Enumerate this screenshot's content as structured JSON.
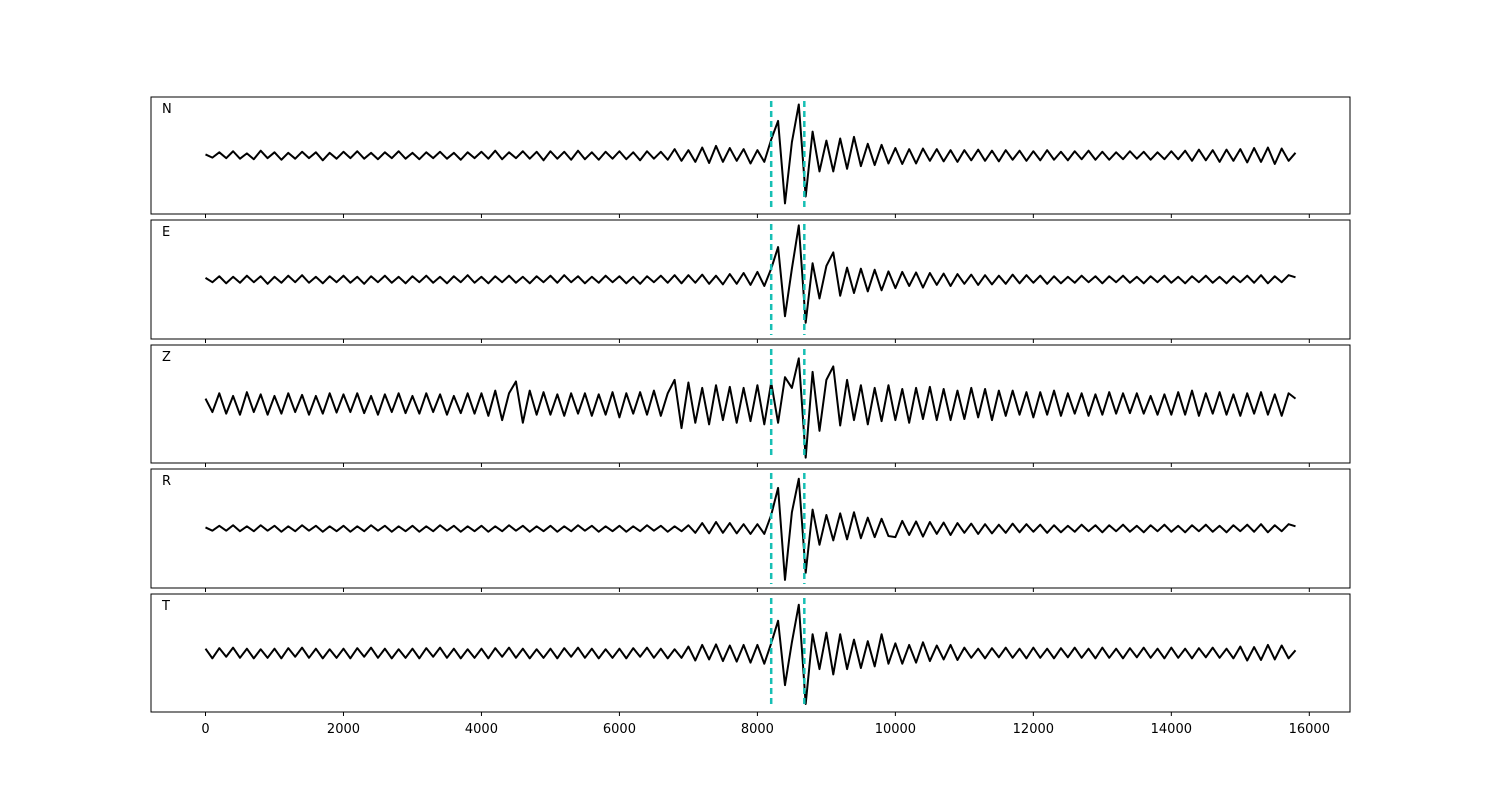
{
  "chart_data": {
    "type": "line",
    "x": [
      0,
      100,
      200,
      300,
      400,
      500,
      600,
      700,
      800,
      900,
      1000,
      1100,
      1200,
      1300,
      1400,
      1500,
      1600,
      1700,
      1800,
      1900,
      2000,
      2100,
      2200,
      2300,
      2400,
      2500,
      2600,
      2700,
      2800,
      2900,
      3000,
      3100,
      3200,
      3300,
      3400,
      3500,
      3600,
      3700,
      3800,
      3900,
      4000,
      4100,
      4200,
      4300,
      4400,
      4500,
      4600,
      4700,
      4800,
      4900,
      5000,
      5100,
      5200,
      5300,
      5400,
      5500,
      5600,
      5700,
      5800,
      5900,
      6000,
      6100,
      6200,
      6300,
      6400,
      6500,
      6600,
      6700,
      6800,
      6900,
      7000,
      7100,
      7200,
      7300,
      7400,
      7500,
      7600,
      7700,
      7800,
      7900,
      8000,
      8100,
      8200,
      8300,
      8400,
      8500,
      8600,
      8700,
      8800,
      8900,
      9000,
      9100,
      9200,
      9300,
      9400,
      9500,
      9600,
      9700,
      9800,
      9900,
      10000,
      10100,
      10200,
      10300,
      10400,
      10500,
      10600,
      10700,
      10800,
      10900,
      11000,
      11100,
      11200,
      11300,
      11400,
      11500,
      11600,
      11700,
      11800,
      11900,
      12000,
      12100,
      12200,
      12300,
      12400,
      12500,
      12600,
      12700,
      12800,
      12900,
      13000,
      13100,
      13200,
      13300,
      13400,
      13500,
      13600,
      13700,
      13800,
      13900,
      14000,
      14100,
      14200,
      14300,
      14400,
      14500,
      14600,
      14700,
      14800,
      14900,
      15000,
      15100,
      15200,
      15300,
      15400,
      15500,
      15600,
      15700,
      15800
    ],
    "xlim": [
      -790,
      16590
    ],
    "xticks": [
      0,
      2000,
      4000,
      6000,
      8000,
      10000,
      12000,
      14000,
      16000
    ],
    "ylim": [
      -1.1,
      1.1
    ],
    "vlines": [
      8200,
      8680
    ],
    "vline_color": "#17bfb4",
    "series": [
      {
        "name": "N",
        "color": "#000000",
        "values": [
          0.02,
          -0.04,
          0.06,
          -0.05,
          0.08,
          -0.06,
          0.04,
          -0.07,
          0.09,
          -0.05,
          0.06,
          -0.08,
          0.05,
          -0.06,
          0.07,
          -0.05,
          0.06,
          -0.09,
          0.05,
          -0.06,
          0.07,
          -0.05,
          0.08,
          -0.06,
          0.05,
          -0.07,
          0.06,
          -0.05,
          0.08,
          -0.06,
          0.05,
          -0.07,
          0.06,
          -0.05,
          0.07,
          -0.06,
          0.05,
          -0.08,
          0.06,
          -0.05,
          0.07,
          -0.06,
          0.09,
          -0.07,
          0.06,
          -0.05,
          0.08,
          -0.06,
          0.07,
          -0.09,
          0.08,
          -0.06,
          0.07,
          -0.08,
          0.09,
          -0.07,
          0.06,
          -0.08,
          0.07,
          -0.06,
          0.08,
          -0.07,
          0.06,
          -0.09,
          0.08,
          -0.06,
          0.07,
          -0.08,
          0.12,
          -0.1,
          0.1,
          -0.12,
          0.15,
          -0.14,
          0.18,
          -0.12,
          0.14,
          -0.1,
          0.12,
          -0.15,
          0.1,
          -0.12,
          0.3,
          0.65,
          -0.9,
          0.25,
          0.96,
          -0.77,
          0.45,
          -0.3,
          0.28,
          -0.3,
          0.32,
          -0.25,
          0.35,
          -0.2,
          0.22,
          -0.18,
          0.2,
          -0.15,
          0.14,
          -0.16,
          0.12,
          -0.15,
          0.13,
          -0.1,
          0.12,
          -0.11,
          0.1,
          -0.12,
          0.1,
          -0.09,
          0.11,
          -0.1,
          0.09,
          -0.11,
          0.1,
          -0.08,
          0.09,
          -0.1,
          0.08,
          -0.09,
          0.1,
          -0.08,
          0.07,
          -0.09,
          0.08,
          -0.07,
          0.09,
          -0.08,
          0.07,
          -0.08,
          0.06,
          -0.07,
          0.08,
          -0.06,
          0.07,
          -0.08,
          0.06,
          -0.07,
          0.08,
          -0.07,
          0.09,
          -0.1,
          0.11,
          -0.09,
          0.1,
          -0.12,
          0.11,
          -0.1,
          0.12,
          -0.13,
          0.14,
          -0.12,
          0.15,
          -0.16,
          0.13,
          -0.1,
          0.05
        ]
      },
      {
        "name": "E",
        "color": "#000000",
        "values": [
          0.03,
          -0.05,
          0.06,
          -0.07,
          0.05,
          -0.06,
          0.07,
          -0.05,
          0.06,
          -0.08,
          0.05,
          -0.06,
          0.07,
          -0.05,
          0.08,
          -0.06,
          0.05,
          -0.07,
          0.06,
          -0.05,
          0.07,
          -0.06,
          0.05,
          -0.08,
          0.06,
          -0.05,
          0.07,
          -0.06,
          0.05,
          -0.07,
          0.06,
          -0.05,
          0.07,
          -0.06,
          0.05,
          -0.07,
          0.06,
          -0.05,
          0.08,
          -0.06,
          0.05,
          -0.07,
          0.06,
          -0.05,
          0.07,
          -0.06,
          0.05,
          -0.07,
          0.06,
          -0.05,
          0.07,
          -0.06,
          0.08,
          -0.05,
          0.06,
          -0.07,
          0.05,
          -0.06,
          0.07,
          -0.05,
          0.06,
          -0.07,
          0.05,
          -0.08,
          0.06,
          -0.05,
          0.07,
          -0.06,
          0.08,
          -0.07,
          0.08,
          -0.06,
          0.09,
          -0.08,
          0.07,
          -0.09,
          0.1,
          -0.08,
          0.12,
          -0.1,
          0.14,
          -0.12,
          0.2,
          0.6,
          -0.68,
          0.2,
          1.0,
          -0.8,
          0.3,
          -0.35,
          0.25,
          0.5,
          -0.3,
          0.22,
          -0.25,
          0.2,
          -0.22,
          0.18,
          -0.2,
          0.15,
          -0.16,
          0.14,
          -0.12,
          0.13,
          -0.15,
          0.12,
          -0.1,
          0.11,
          -0.12,
          0.1,
          -0.08,
          0.09,
          -0.1,
          0.08,
          -0.09,
          0.07,
          -0.08,
          0.09,
          -0.07,
          0.08,
          -0.06,
          0.07,
          -0.08,
          0.06,
          -0.07,
          0.05,
          -0.06,
          0.07,
          -0.05,
          0.06,
          -0.07,
          0.06,
          -0.05,
          0.07,
          -0.06,
          0.05,
          -0.07,
          0.06,
          -0.05,
          0.07,
          -0.06,
          0.05,
          -0.07,
          0.06,
          -0.05,
          0.07,
          -0.06,
          0.05,
          -0.07,
          0.06,
          -0.05,
          0.07,
          -0.06,
          0.08,
          -0.07,
          0.06,
          -0.05,
          0.08,
          0.04
        ]
      },
      {
        "name": "Z",
        "color": "#000000",
        "values": [
          0.1,
          -0.15,
          0.2,
          -0.18,
          0.15,
          -0.2,
          0.22,
          -0.15,
          0.18,
          -0.2,
          0.15,
          -0.18,
          0.2,
          -0.15,
          0.17,
          -0.2,
          0.15,
          -0.18,
          0.2,
          -0.16,
          0.18,
          -0.15,
          0.2,
          -0.17,
          0.15,
          -0.2,
          0.18,
          -0.15,
          0.2,
          -0.17,
          0.15,
          -0.18,
          0.2,
          -0.15,
          0.18,
          -0.2,
          0.15,
          -0.17,
          0.2,
          -0.18,
          0.2,
          -0.22,
          0.25,
          -0.3,
          0.2,
          0.42,
          -0.35,
          0.25,
          -0.2,
          0.22,
          -0.2,
          0.18,
          -0.22,
          0.2,
          -0.18,
          0.2,
          -0.22,
          0.18,
          -0.2,
          0.22,
          -0.25,
          0.2,
          -0.18,
          0.22,
          -0.2,
          0.25,
          -0.22,
          0.2,
          0.45,
          -0.45,
          0.4,
          -0.35,
          0.3,
          -0.38,
          0.35,
          -0.3,
          0.32,
          -0.35,
          0.3,
          -0.32,
          0.35,
          -0.38,
          0.4,
          -0.35,
          0.5,
          0.3,
          0.85,
          -1.0,
          0.6,
          -0.5,
          0.45,
          0.7,
          -0.4,
          0.45,
          -0.3,
          0.35,
          -0.38,
          0.3,
          -0.32,
          0.35,
          -0.3,
          0.28,
          -0.35,
          0.3,
          -0.28,
          0.32,
          -0.3,
          0.28,
          -0.3,
          0.25,
          -0.28,
          0.3,
          -0.25,
          0.28,
          -0.3,
          0.25,
          -0.22,
          0.25,
          -0.2,
          0.22,
          -0.25,
          0.22,
          -0.2,
          0.25,
          -0.22,
          0.2,
          -0.18,
          0.2,
          -0.22,
          0.18,
          -0.2,
          0.22,
          -0.18,
          0.2,
          -0.17,
          0.2,
          -0.18,
          0.15,
          -0.2,
          0.18,
          -0.2,
          0.22,
          -0.2,
          0.25,
          -0.22,
          0.2,
          -0.18,
          0.22,
          -0.2,
          0.18,
          -0.22,
          0.2,
          -0.18,
          0.22,
          -0.2,
          0.18,
          -0.22,
          0.2,
          0.1
        ]
      },
      {
        "name": "R",
        "color": "#000000",
        "values": [
          0.02,
          -0.04,
          0.05,
          -0.04,
          0.06,
          -0.05,
          0.04,
          -0.05,
          0.06,
          -0.04,
          0.05,
          -0.06,
          0.04,
          -0.05,
          0.06,
          -0.04,
          0.05,
          -0.06,
          0.04,
          -0.05,
          0.05,
          -0.06,
          0.04,
          -0.05,
          0.06,
          -0.04,
          0.05,
          -0.06,
          0.04,
          -0.05,
          0.05,
          -0.06,
          0.04,
          -0.05,
          0.06,
          -0.04,
          0.05,
          -0.06,
          0.04,
          -0.05,
          0.05,
          -0.06,
          0.04,
          -0.05,
          0.06,
          -0.04,
          0.05,
          -0.06,
          0.04,
          -0.05,
          0.05,
          -0.06,
          0.04,
          -0.05,
          0.06,
          -0.04,
          0.05,
          -0.06,
          0.04,
          -0.05,
          0.05,
          -0.06,
          0.04,
          -0.05,
          0.06,
          -0.04,
          0.05,
          -0.06,
          0.04,
          -0.05,
          0.06,
          -0.08,
          0.1,
          -0.09,
          0.12,
          -0.08,
          0.1,
          -0.09,
          0.08,
          -0.1,
          0.08,
          -0.1,
          0.25,
          0.75,
          -0.95,
          0.3,
          0.92,
          -0.82,
          0.35,
          -0.3,
          0.25,
          -0.22,
          0.28,
          -0.2,
          0.3,
          -0.18,
          0.2,
          -0.16,
          0.18,
          -0.14,
          -0.16,
          0.14,
          -0.12,
          0.13,
          -0.15,
          0.12,
          -0.1,
          0.11,
          -0.12,
          0.1,
          -0.08,
          0.09,
          -0.1,
          0.08,
          -0.09,
          0.07,
          -0.08,
          0.09,
          -0.07,
          0.08,
          -0.06,
          0.07,
          -0.08,
          0.06,
          -0.07,
          0.05,
          -0.06,
          0.07,
          -0.05,
          0.06,
          -0.07,
          0.06,
          -0.05,
          0.07,
          -0.06,
          0.05,
          -0.07,
          0.06,
          -0.05,
          0.07,
          -0.06,
          0.05,
          -0.07,
          0.06,
          -0.05,
          0.07,
          -0.06,
          0.05,
          -0.07,
          0.06,
          -0.05,
          0.07,
          -0.06,
          0.08,
          -0.07,
          0.06,
          -0.05,
          0.08,
          0.04
        ]
      },
      {
        "name": "T",
        "color": "#000000",
        "values": [
          0.08,
          -0.1,
          0.09,
          -0.07,
          0.1,
          -0.09,
          0.08,
          -0.1,
          0.07,
          -0.09,
          0.08,
          -0.1,
          0.09,
          -0.07,
          0.1,
          -0.09,
          0.08,
          -0.1,
          0.07,
          -0.09,
          0.08,
          -0.1,
          0.09,
          -0.07,
          0.1,
          -0.09,
          0.08,
          -0.1,
          0.07,
          -0.09,
          0.08,
          -0.1,
          0.09,
          -0.07,
          0.1,
          -0.09,
          0.08,
          -0.1,
          0.07,
          -0.09,
          0.08,
          -0.1,
          0.09,
          -0.07,
          0.1,
          -0.09,
          0.08,
          -0.1,
          0.07,
          -0.09,
          0.08,
          -0.1,
          0.09,
          -0.07,
          0.1,
          -0.09,
          0.08,
          -0.1,
          0.07,
          -0.09,
          0.08,
          -0.1,
          0.09,
          -0.07,
          0.1,
          -0.09,
          0.08,
          -0.1,
          0.07,
          -0.09,
          0.12,
          -0.14,
          0.15,
          -0.12,
          0.16,
          -0.15,
          0.14,
          -0.16,
          0.15,
          -0.18,
          0.15,
          -0.2,
          0.18,
          0.6,
          -0.6,
          0.2,
          0.9,
          -0.95,
          0.35,
          -0.3,
          0.38,
          -0.4,
          0.35,
          -0.3,
          0.25,
          -0.28,
          0.22,
          -0.25,
          0.35,
          -0.2,
          0.18,
          -0.2,
          0.15,
          -0.18,
          0.2,
          -0.15,
          0.14,
          -0.12,
          0.15,
          -0.13,
          0.1,
          -0.09,
          0.08,
          -0.1,
          0.09,
          -0.08,
          0.1,
          -0.09,
          0.08,
          -0.1,
          0.1,
          -0.09,
          0.08,
          -0.1,
          0.09,
          -0.08,
          0.1,
          -0.09,
          0.08,
          -0.1,
          0.1,
          -0.09,
          0.08,
          -0.1,
          0.09,
          -0.08,
          0.1,
          -0.09,
          0.08,
          -0.1,
          0.1,
          -0.09,
          0.08,
          -0.1,
          0.09,
          -0.08,
          0.1,
          -0.09,
          0.08,
          -0.1,
          0.12,
          -0.14,
          0.11,
          -0.13,
          0.15,
          -0.12,
          0.14,
          -0.1,
          0.05
        ]
      }
    ]
  }
}
